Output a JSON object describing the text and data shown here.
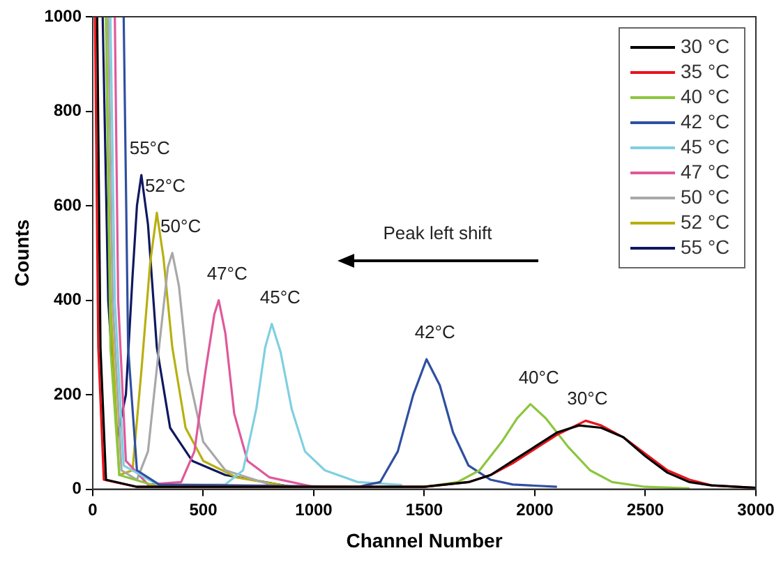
{
  "chart_data": {
    "type": "line",
    "xlabel": "Channel Number",
    "ylabel": "Counts",
    "xlim": [
      0,
      3000
    ],
    "ylim": [
      0,
      1000
    ],
    "xticks": [
      0,
      500,
      1000,
      1500,
      2000,
      2500,
      3000
    ],
    "yticks": [
      0,
      200,
      400,
      600,
      800,
      1000
    ],
    "grid": false,
    "legend": "top right",
    "marker": "none",
    "line_style": "solid",
    "annotations": [
      {
        "text": "55°C",
        "x": 220,
        "y": 665
      },
      {
        "text": "52°C",
        "x": 290,
        "y": 585
      },
      {
        "text": "50°C",
        "x": 360,
        "y": 500
      },
      {
        "text": "47°C",
        "x": 570,
        "y": 400
      },
      {
        "text": "45°C",
        "x": 810,
        "y": 350
      },
      {
        "text": "42°C",
        "x": 1510,
        "y": 275
      },
      {
        "text": "40°C",
        "x": 1980,
        "y": 180
      },
      {
        "text": "30°C",
        "x": 2200,
        "y": 135
      },
      "Peak left shift"
    ],
    "series": [
      {
        "name": "30 °C",
        "color": "#000000",
        "x": [
          20,
          35,
          60,
          200,
          1500,
          1700,
          1800,
          1900,
          2000,
          2100,
          2200,
          2300,
          2400,
          2500,
          2600,
          2700,
          2800,
          3000
        ],
        "values": [
          1000,
          300,
          20,
          5,
          5,
          15,
          30,
          60,
          90,
          120,
          135,
          130,
          110,
          70,
          35,
          15,
          8,
          3
        ]
      },
      {
        "name": "35 °C",
        "color": "#e8141b",
        "x": [
          10,
          25,
          50,
          200,
          1500,
          1700,
          1800,
          1900,
          2000,
          2100,
          2230,
          2300,
          2400,
          2500,
          2600,
          2700,
          2800,
          3000
        ],
        "values": [
          1000,
          300,
          20,
          5,
          5,
          15,
          30,
          55,
          85,
          115,
          145,
          135,
          110,
          75,
          40,
          20,
          8,
          3
        ]
      },
      {
        "name": "40 °C",
        "color": "#8cc63e",
        "x": [
          60,
          80,
          120,
          300,
          1500,
          1650,
          1750,
          1850,
          1920,
          1980,
          2050,
          2150,
          2250,
          2350,
          2500,
          2700
        ],
        "values": [
          1000,
          300,
          30,
          5,
          5,
          15,
          40,
          100,
          150,
          180,
          150,
          90,
          40,
          15,
          5,
          2
        ]
      },
      {
        "name": "42 °C",
        "color": "#2f4fa0",
        "x": [
          140,
          160,
          200,
          300,
          1200,
          1300,
          1380,
          1450,
          1510,
          1570,
          1630,
          1700,
          1800,
          1900,
          2100
        ],
        "values": [
          1000,
          300,
          40,
          10,
          5,
          15,
          80,
          200,
          275,
          220,
          120,
          50,
          20,
          10,
          5
        ]
      },
      {
        "name": "45 °C",
        "color": "#7fd0e0",
        "x": [
          80,
          100,
          140,
          300,
          600,
          680,
          740,
          780,
          810,
          850,
          900,
          960,
          1050,
          1200,
          1400
        ],
        "values": [
          1000,
          400,
          50,
          8,
          10,
          40,
          170,
          300,
          350,
          290,
          170,
          80,
          40,
          15,
          9
        ]
      },
      {
        "name": "47 °C",
        "color": "#e0589a",
        "x": [
          100,
          115,
          150,
          250,
          400,
          460,
          510,
          550,
          570,
          600,
          640,
          700,
          800,
          1000
        ],
        "values": [
          1000,
          400,
          60,
          10,
          15,
          80,
          250,
          370,
          400,
          330,
          160,
          60,
          25,
          5
        ]
      },
      {
        "name": "50 °C",
        "color": "#a8a8a8",
        "x": [
          70,
          90,
          130,
          200,
          250,
          300,
          340,
          360,
          390,
          430,
          500,
          600,
          800
        ],
        "values": [
          1000,
          400,
          40,
          20,
          80,
          300,
          470,
          500,
          430,
          250,
          100,
          40,
          10
        ]
      },
      {
        "name": "52 °C",
        "color": "#b8b010",
        "x": [
          60,
          80,
          120,
          180,
          220,
          260,
          290,
          320,
          360,
          420,
          500,
          650,
          900
        ],
        "values": [
          1000,
          400,
          30,
          40,
          250,
          480,
          585,
          490,
          300,
          130,
          60,
          25,
          5
        ]
      },
      {
        "name": "55 °C",
        "color": "#101860",
        "x": [
          45,
          70,
          110,
          150,
          180,
          200,
          220,
          250,
          290,
          350,
          450,
          600,
          900
        ],
        "values": [
          1000,
          400,
          110,
          200,
          450,
          600,
          665,
          560,
          300,
          130,
          60,
          30,
          5
        ]
      }
    ]
  }
}
